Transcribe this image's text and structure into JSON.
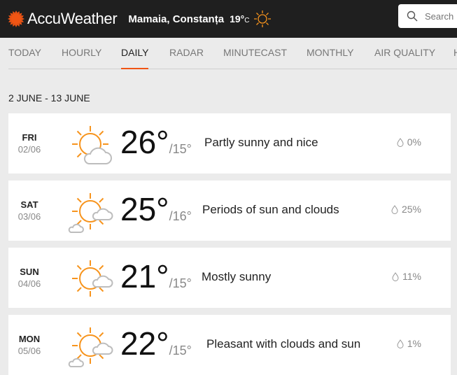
{
  "header": {
    "brand": "AccuWeather",
    "location": "Mamaia, Constanța",
    "current_temp": "19°",
    "unit": "C",
    "search_placeholder": "Search"
  },
  "nav": {
    "tabs": [
      {
        "label": "TODAY"
      },
      {
        "label": "HOURLY"
      },
      {
        "label": "DAILY",
        "active": true
      },
      {
        "label": "RADAR"
      },
      {
        "label": "MINUTECAST"
      },
      {
        "label": "MONTHLY"
      },
      {
        "label": "AIR QUALITY"
      },
      {
        "label": "H"
      }
    ]
  },
  "range": "2 JUNE - 13 JUNE",
  "colors": {
    "accent": "#f05514",
    "sun": "#f7941d",
    "cloud": "#bdbdbd"
  },
  "days": [
    {
      "dow": "FRI",
      "date": "02/06",
      "hi": "26°",
      "lo": "/15°",
      "desc": "Partly sunny and nice",
      "precip": "0%",
      "icon": "partly-sunny-icon"
    },
    {
      "dow": "SAT",
      "date": "03/06",
      "hi": "25°",
      "lo": "/16°",
      "desc": "Periods of sun and clouds",
      "precip": "25%",
      "icon": "sun-clouds-icon"
    },
    {
      "dow": "SUN",
      "date": "04/06",
      "hi": "21°",
      "lo": "/15°",
      "desc": "Mostly sunny",
      "precip": "11%",
      "icon": "mostly-sunny-icon"
    },
    {
      "dow": "MON",
      "date": "05/06",
      "hi": "22°",
      "lo": "/15°",
      "desc": "Pleasant with clouds and sun",
      "precip": "1%",
      "icon": "sun-clouds-icon"
    }
  ]
}
